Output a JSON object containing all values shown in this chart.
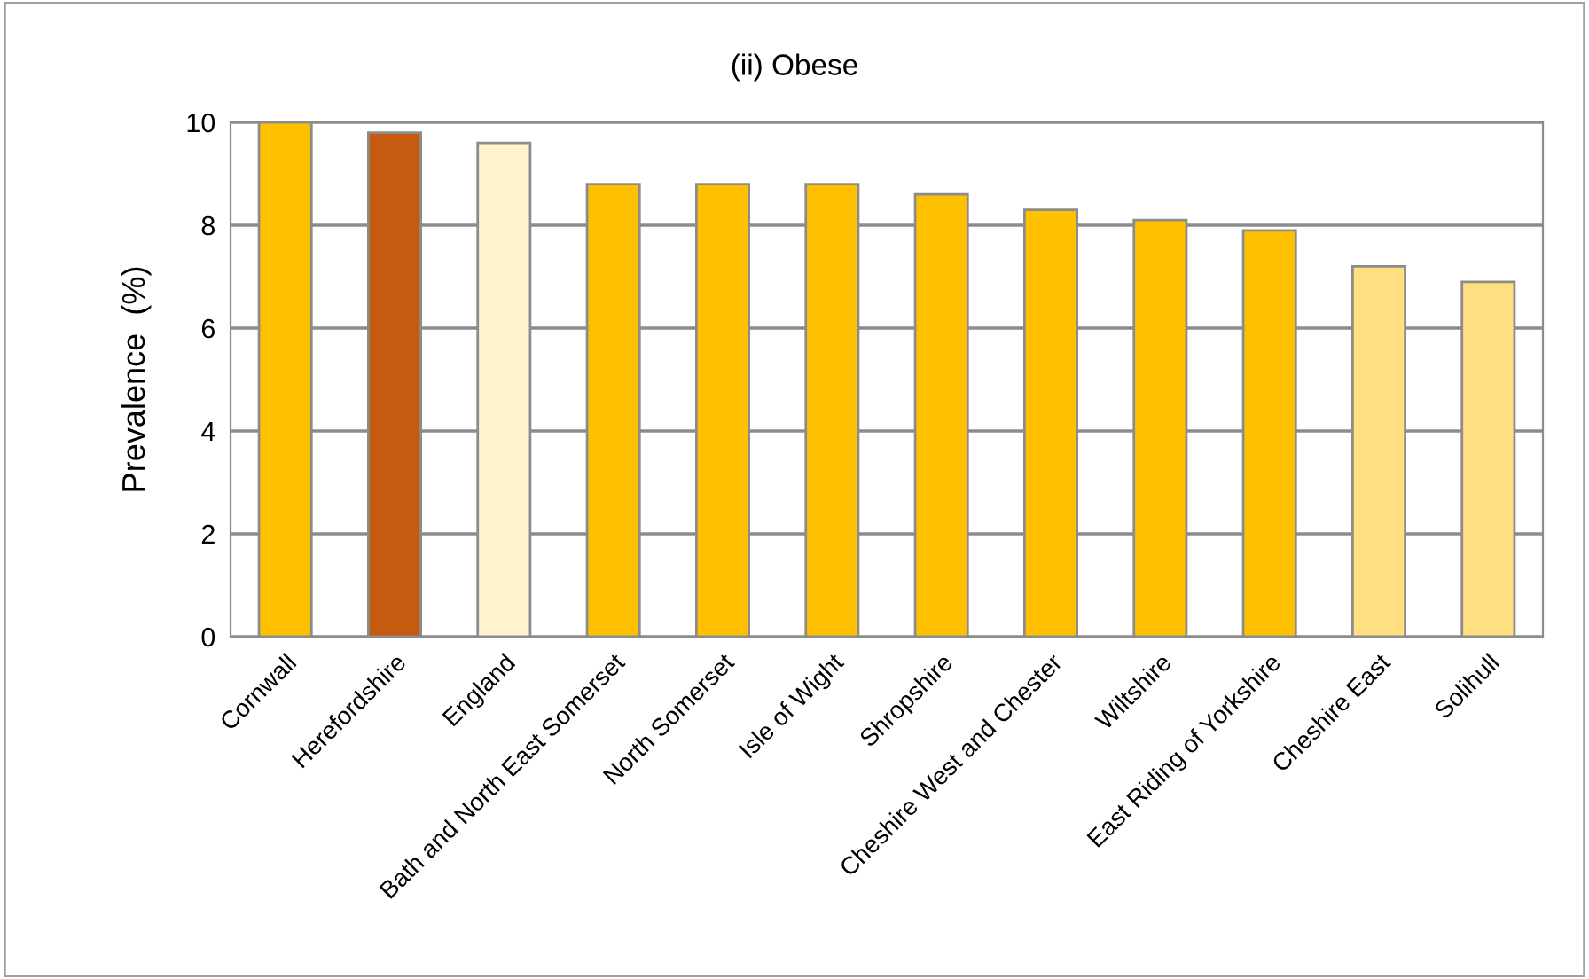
{
  "chart_data": {
    "type": "bar",
    "title": "(ii) Obese",
    "ylabel": "Prevalence  (%)",
    "categories": [
      "Cornwall",
      "Herefordshire",
      "England",
      "Bath and North East Somerset",
      "North Somerset",
      "Isle of Wight",
      "Shropshire",
      "Cheshire West and Chester",
      "Wiltshire",
      "East Riding of Yorkshire",
      "Cheshire East",
      "Solihull"
    ],
    "values": [
      10.0,
      9.8,
      9.6,
      8.8,
      8.8,
      8.8,
      8.6,
      8.3,
      8.1,
      7.9,
      7.2,
      6.9
    ],
    "colors": [
      "#ffc000",
      "#c55a11",
      "#fff2cc",
      "#ffc000",
      "#ffc000",
      "#ffc000",
      "#ffc000",
      "#ffc000",
      "#ffc000",
      "#ffc000",
      "#ffdf80",
      "#ffdf80"
    ],
    "ylim": [
      0,
      10
    ],
    "yticks": [
      0,
      2,
      4,
      6,
      8,
      10
    ],
    "grid": "y",
    "legend": false
  }
}
